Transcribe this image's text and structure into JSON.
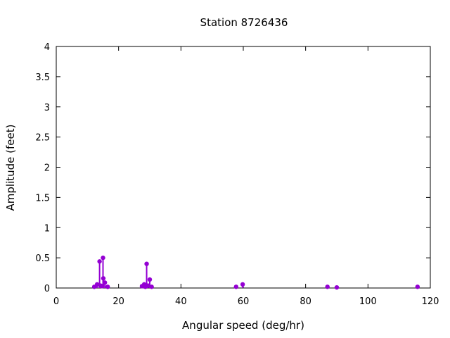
{
  "chart_data": {
    "type": "scatter",
    "style": "impulses-with-points",
    "title": "Station 8726436",
    "xlabel": "Angular speed (deg/hr)",
    "ylabel": "Amplitude (feet)",
    "xlim": [
      0,
      120
    ],
    "ylim": [
      0,
      4
    ],
    "xticks": [
      0,
      20,
      40,
      60,
      80,
      100,
      120
    ],
    "yticks": [
      0,
      0.5,
      1,
      1.5,
      2,
      2.5,
      3,
      3.5,
      4
    ],
    "grid": false,
    "legend_position": "none",
    "frame_color": "#000000",
    "background_color": "#ffffff",
    "text_color": "#000000",
    "series": [
      {
        "name": "amplitude",
        "color": "#9400d3",
        "points": [
          [
            12.2,
            0.02
          ],
          [
            13.1,
            0.06
          ],
          [
            13.9,
            0.44
          ],
          [
            14.2,
            0.04
          ],
          [
            14.7,
            0.03
          ],
          [
            15.0,
            0.5
          ],
          [
            15.1,
            0.16
          ],
          [
            15.6,
            0.09
          ],
          [
            16.5,
            0.02
          ],
          [
            27.5,
            0.03
          ],
          [
            28.2,
            0.06
          ],
          [
            28.6,
            0.02
          ],
          [
            29.0,
            0.4
          ],
          [
            29.4,
            0.04
          ],
          [
            30.0,
            0.14
          ],
          [
            30.6,
            0.02
          ],
          [
            57.7,
            0.02
          ],
          [
            59.8,
            0.06
          ],
          [
            87.0,
            0.02
          ],
          [
            90.0,
            0.01
          ],
          [
            115.9,
            0.02
          ]
        ]
      }
    ]
  }
}
